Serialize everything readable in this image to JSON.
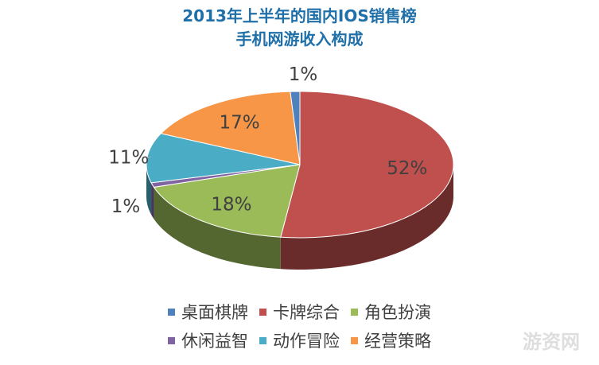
{
  "chart_data": {
    "type": "pie",
    "title_lines": [
      "2013年上半年的国内IOS销售榜",
      "手机网游收入构成"
    ],
    "slices": [
      {
        "label": "卡牌综合",
        "value": 52,
        "value_label": "52%",
        "color": "#c0504d"
      },
      {
        "label": "角色扮演",
        "value": 18,
        "value_label": "18%",
        "color": "#9bbb59"
      },
      {
        "label": "休闲益智",
        "value": 1,
        "value_label": "1%",
        "color": "#8064a2"
      },
      {
        "label": "动作冒险",
        "value": 11,
        "value_label": "11%",
        "color": "#4bacc6"
      },
      {
        "label": "经营策略",
        "value": 17,
        "value_label": "17%",
        "color": "#f79646"
      },
      {
        "label": "桌面棋牌",
        "value": 1,
        "value_label": "1%",
        "color": "#4f81bd"
      }
    ],
    "legend_rows": [
      [
        {
          "label": "桌面棋牌",
          "color": "#4f81bd"
        },
        {
          "label": "卡牌综合",
          "color": "#c0504d"
        },
        {
          "label": "角色扮演",
          "color": "#9bbb59"
        }
      ],
      [
        {
          "label": "休闲益智",
          "color": "#8064a2"
        },
        {
          "label": "动作冒险",
          "color": "#4bacc6"
        },
        {
          "label": "经营策略",
          "color": "#f79646"
        }
      ]
    ],
    "legend_position": "bottom",
    "style": "3d-tilted"
  },
  "watermark": "游资网"
}
